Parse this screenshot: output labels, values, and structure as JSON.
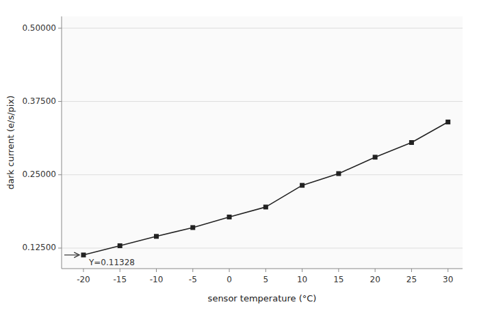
{
  "chart_data": {
    "type": "line",
    "x": [
      -20,
      -15,
      -10,
      -5,
      0,
      5,
      10,
      15,
      20,
      25,
      30
    ],
    "values": [
      0.11328,
      0.129,
      0.145,
      0.16,
      0.178,
      0.195,
      0.232,
      0.252,
      0.28,
      0.305,
      0.34
    ],
    "xlabel": "sensor temperature (°C)",
    "ylabel": "dark current (e/s/pix)",
    "annotations": [
      {
        "text": "Y=0.11328",
        "x": -20,
        "y": 0.11328
      }
    ],
    "xlim": [
      -23,
      32
    ],
    "ylim": [
      0.09,
      0.52
    ],
    "xticks": [
      -20,
      -15,
      -10,
      -5,
      0,
      5,
      10,
      15,
      20,
      25,
      30
    ],
    "yticks": [
      {
        "value": 0.125,
        "label": "0.12500"
      },
      {
        "value": 0.25,
        "label": "0.25000"
      },
      {
        "value": 0.375,
        "label": "0.37500"
      },
      {
        "value": 0.5,
        "label": "0.50000"
      }
    ],
    "color": "#222222",
    "marker": "square",
    "grid": true
  }
}
